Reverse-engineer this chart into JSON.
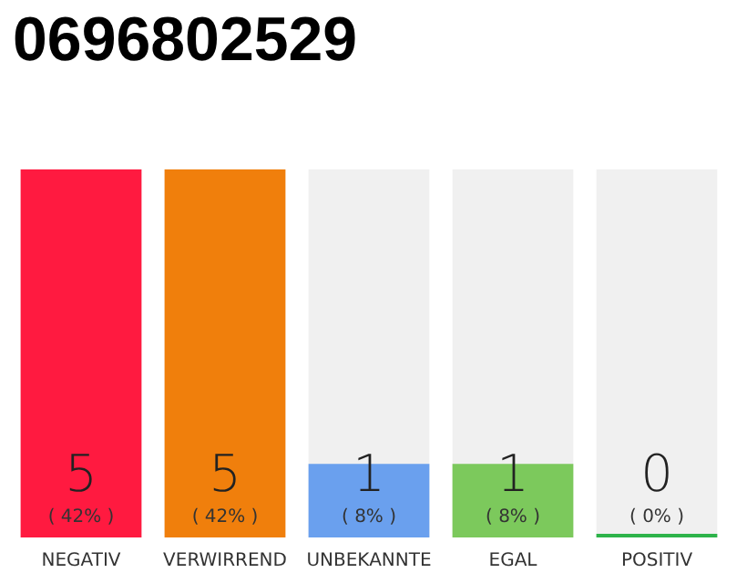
{
  "chart_data": {
    "type": "bar",
    "title": "0696802529",
    "categories": [
      "NEGATIV",
      "VERWIRREND",
      "UNBEKANNTE",
      "EGAL",
      "POSITIV"
    ],
    "values": [
      5,
      5,
      1,
      1,
      0
    ],
    "colors": [
      "#ff1a40",
      "#f07f0c",
      "#6aa0ee",
      "#7cc95c",
      "#2db34a"
    ],
    "value_labels": [
      "5\n( 42% )",
      "5\n( 42% )",
      "1\n( 8% )",
      "1\n( 8% )",
      "0\n( 0% )"
    ]
  }
}
